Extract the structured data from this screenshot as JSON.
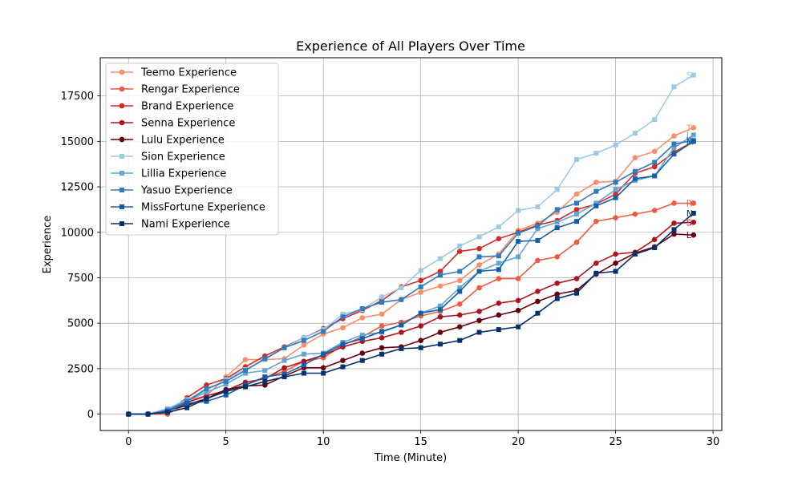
{
  "chart_data": {
    "type": "line",
    "title": "Experience of All Players Over Time",
    "xlabel": "Time (Minute)",
    "ylabel": "Experience",
    "xlim": [
      -1.45,
      30.45
    ],
    "ylim": [
      -900,
      19600
    ],
    "xticks": [
      0,
      5,
      10,
      15,
      20,
      25,
      30
    ],
    "yticks": [
      0,
      2500,
      5000,
      7500,
      10000,
      12500,
      15000,
      17500
    ],
    "grid": true,
    "legend": "top-left",
    "x": [
      0,
      1,
      2,
      3,
      4,
      5,
      6,
      7,
      8,
      9,
      10,
      11,
      12,
      13,
      14,
      15,
      16,
      17,
      18,
      19,
      20,
      21,
      22,
      23,
      24,
      25,
      26,
      27,
      28,
      29
    ],
    "series": [
      {
        "name": "Teemo Experience",
        "color": "#fc8d6a",
        "marker": "circle",
        "end_label": "T",
        "values": [
          0,
          0,
          280,
          760,
          1000,
          2050,
          3000,
          3000,
          3050,
          3800,
          4400,
          4750,
          5300,
          5500,
          6300,
          6700,
          7050,
          7350,
          8200,
          8800,
          10100,
          10500,
          11100,
          12100,
          12750,
          12800,
          14100,
          14450,
          15300,
          15750
        ]
      },
      {
        "name": "Rengar Experience",
        "color": "#f05a40",
        "marker": "circle",
        "end_label": "R",
        "values": [
          0,
          0,
          0,
          550,
          850,
          1250,
          1600,
          2000,
          2350,
          2900,
          3100,
          3800,
          4250,
          4850,
          5050,
          5400,
          5650,
          6050,
          6950,
          7450,
          7450,
          8450,
          8650,
          9450,
          10600,
          10800,
          11000,
          11200,
          11600,
          11600
        ]
      },
      {
        "name": "Brand Experience",
        "color": "#d42a27",
        "marker": "circle",
        "end_label": "B",
        "values": [
          0,
          0,
          120,
          900,
          1600,
          1950,
          2600,
          3200,
          3700,
          4200,
          4700,
          5250,
          5700,
          6250,
          7000,
          7350,
          7850,
          8950,
          9100,
          9650,
          10000,
          10400,
          10650,
          11250,
          11550,
          12100,
          13250,
          13600,
          14400,
          15000
        ]
      },
      {
        "name": "Senna Experience",
        "color": "#ad1420",
        "marker": "circle",
        "end_label": "S",
        "values": [
          0,
          0,
          180,
          650,
          1000,
          1300,
          1750,
          1950,
          2550,
          2900,
          3250,
          3700,
          4000,
          4200,
          4500,
          4850,
          5350,
          5450,
          5650,
          6100,
          6250,
          6750,
          7200,
          7450,
          8300,
          8800,
          8900,
          9600,
          10500,
          10550
        ]
      },
      {
        "name": "Lulu Experience",
        "color": "#67000d",
        "marker": "circle",
        "end_label": "L",
        "values": [
          0,
          0,
          200,
          480,
          850,
          1350,
          1550,
          1600,
          2100,
          2550,
          2550,
          2950,
          3350,
          3650,
          3700,
          4050,
          4500,
          4800,
          5150,
          5450,
          5700,
          6200,
          6600,
          6800,
          7700,
          8300,
          8850,
          9200,
          9900,
          9850
        ]
      },
      {
        "name": "Sion Experience",
        "color": "#9ecae1",
        "marker": "square",
        "end_label": "S",
        "values": [
          0,
          0,
          300,
          800,
          1300,
          1900,
          2450,
          3000,
          3650,
          4200,
          4650,
          5500,
          5750,
          6450,
          6950,
          7900,
          8550,
          9250,
          9750,
          10300,
          11200,
          11400,
          12350,
          14000,
          14350,
          14800,
          15450,
          16200,
          18000,
          18650
        ]
      },
      {
        "name": "Lillia Experience",
        "color": "#63a5d3",
        "marker": "square",
        "end_label": "L",
        "values": [
          0,
          0,
          260,
          750,
          1200,
          1650,
          2250,
          2400,
          2950,
          3300,
          3350,
          3950,
          4350,
          4500,
          4900,
          5550,
          5950,
          6950,
          7850,
          8300,
          8650,
          10200,
          10550,
          11000,
          11600,
          12350,
          12850,
          13100,
          14650,
          15350
        ]
      },
      {
        "name": "Yasuo Experience",
        "color": "#2f7bbb",
        "marker": "square",
        "end_label": "Y",
        "values": [
          0,
          0,
          200,
          700,
          1400,
          1800,
          2400,
          3050,
          3650,
          4050,
          4550,
          5350,
          5800,
          6150,
          6300,
          7000,
          7650,
          7850,
          8650,
          8700,
          9950,
          10350,
          11250,
          11600,
          12250,
          12750,
          13350,
          13850,
          14850,
          15050
        ]
      },
      {
        "name": "MissFortune Experience",
        "color": "#1460a8",
        "marker": "square",
        "end_label": "M",
        "values": [
          0,
          0,
          150,
          600,
          700,
          1050,
          1600,
          2050,
          2200,
          2700,
          3300,
          3850,
          4150,
          4550,
          4900,
          5550,
          5750,
          6750,
          7850,
          7950,
          9500,
          9550,
          10250,
          10600,
          11450,
          11900,
          12950,
          13100,
          14300,
          15000
        ]
      },
      {
        "name": "Nami Experience",
        "color": "#08306b",
        "marker": "square",
        "end_label": "N",
        "values": [
          0,
          0,
          100,
          350,
          850,
          1250,
          1500,
          1800,
          2050,
          2250,
          2250,
          2600,
          2950,
          3300,
          3600,
          3650,
          3850,
          4050,
          4500,
          4650,
          4800,
          5550,
          6350,
          6650,
          7750,
          7850,
          8800,
          9150,
          10150,
          11050
        ]
      }
    ]
  }
}
